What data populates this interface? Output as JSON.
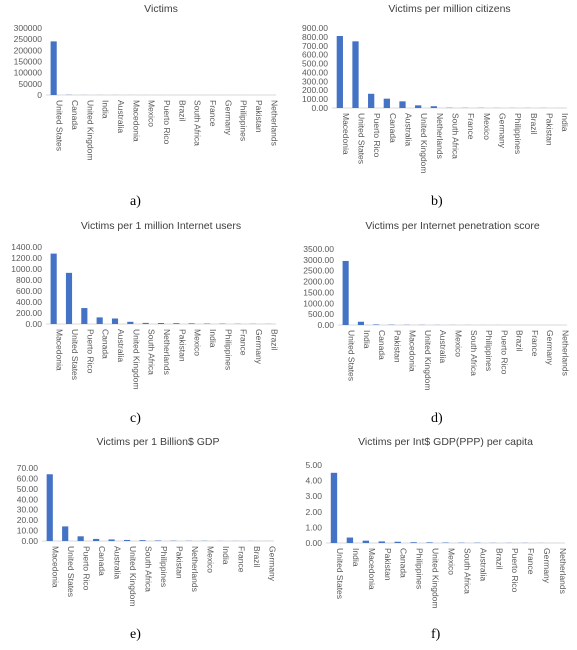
{
  "colors": {
    "bar": "#4472c4",
    "axis": "#d9d9d9",
    "text": "#595959"
  },
  "captions": [
    "a)",
    "b)",
    "c)",
    "d)",
    "e)",
    "f)"
  ],
  "chart_data": [
    {
      "type": "bar",
      "title": "Victims",
      "categories": [
        "United States",
        "Canada",
        "United Kingdom",
        "India",
        "Australia",
        "Macedonia",
        "Mexico",
        "Puerto Rico",
        "Brazil",
        "South Africa",
        "France",
        "Germany",
        "Philippines",
        "Pakistan",
        "Netherlands"
      ],
      "values": [
        240000,
        900,
        350,
        300,
        250,
        200,
        150,
        120,
        100,
        80,
        60,
        50,
        40,
        30,
        20
      ],
      "ylim": [
        0,
        300000
      ],
      "yticks": [
        "0",
        "50000",
        "100000",
        "150000",
        "200000",
        "250000",
        "300000"
      ]
    },
    {
      "type": "bar",
      "title": "Victims per million citizens",
      "categories": [
        "Macedonia",
        "United States",
        "Puerto Rico",
        "Canada",
        "Australia",
        "United Kingdom",
        "Netherlands",
        "South Africa",
        "France",
        "Mexico",
        "Germany",
        "Philippines",
        "Brazil",
        "Pakistan",
        "India"
      ],
      "values": [
        810,
        750,
        160,
        105,
        75,
        30,
        20,
        3,
        2,
        2,
        1,
        1,
        1,
        1,
        0.5
      ],
      "ylim": [
        0,
        900
      ],
      "yticks": [
        "0.00",
        "100.00",
        "200.00",
        "300.00",
        "400.00",
        "500.00",
        "600.00",
        "700.00",
        "800.00",
        "900.00"
      ]
    },
    {
      "type": "bar",
      "title": "Victims per 1 million Internet users",
      "categories": [
        "Macedonia",
        "United States",
        "Puerto Rico",
        "Canada",
        "Australia",
        "United Kingdom",
        "South Africa",
        "Netherlands",
        "Pakistan",
        "Mexico",
        "India",
        "Philippines",
        "France",
        "Germany",
        "Brazil"
      ],
      "values": [
        1280,
        930,
        290,
        120,
        100,
        40,
        20,
        18,
        15,
        12,
        8,
        6,
        4,
        3,
        2
      ],
      "ylim": [
        0,
        1400
      ],
      "yticks": [
        "0.00",
        "200.00",
        "400.00",
        "600.00",
        "800.00",
        "1000.00",
        "1200.00",
        "1400.00"
      ]
    },
    {
      "type": "bar",
      "title": "Victims per Internet penetration score",
      "categories": [
        "United States",
        "India",
        "Canada",
        "Pakistan",
        "Macedonia",
        "United Kingdom",
        "Australia",
        "Mexico",
        "South Africa",
        "Philippines",
        "Puerto Rico",
        "Brazil",
        "France",
        "Germany",
        "Netherlands"
      ],
      "values": [
        2950,
        150,
        25,
        15,
        10,
        8,
        5,
        4,
        3,
        2,
        2,
        1,
        1,
        1,
        0.5
      ],
      "ylim": [
        0,
        3500
      ],
      "yticks": [
        "0.00",
        "500.00",
        "1000.00",
        "1500.00",
        "2000.00",
        "2500.00",
        "3000.00",
        "3500.00"
      ]
    },
    {
      "type": "bar",
      "title": "Victims per 1 Billion$ GDP",
      "categories": [
        "Macedonia",
        "United States",
        "Puerto Rico",
        "Canada",
        "Australia",
        "United Kingdom",
        "South Africa",
        "Philippines",
        "Pakistan",
        "Netherlands",
        "Mexico",
        "India",
        "France",
        "Brazil",
        "Germany"
      ],
      "values": [
        64,
        14,
        4.5,
        2,
        1.5,
        1,
        0.8,
        0.5,
        0.3,
        0.2,
        0.2,
        0.1,
        0.1,
        0.1,
        0.05
      ],
      "ylim": [
        0,
        70
      ],
      "yticks": [
        "0.00",
        "10.00",
        "20.00",
        "30.00",
        "40.00",
        "50.00",
        "60.00",
        "70.00"
      ]
    },
    {
      "type": "bar",
      "title": "Victims per Int$ GDP(PPP) per capita",
      "categories": [
        "United States",
        "India",
        "Macedonia",
        "Pakistan",
        "Canada",
        "Philippines",
        "United Kingdom",
        "Mexico",
        "South Africa",
        "Australia",
        "Brazil",
        "Puerto Rico",
        "France",
        "Germany",
        "Netherlands"
      ],
      "values": [
        4.5,
        0.35,
        0.15,
        0.1,
        0.08,
        0.05,
        0.04,
        0.03,
        0.02,
        0.02,
        0.01,
        0.01,
        0.01,
        0.005,
        0.002
      ],
      "ylim": [
        0,
        5
      ],
      "yticks": [
        "0.00",
        "1.00",
        "2.00",
        "3.00",
        "4.00",
        "5.00"
      ]
    }
  ]
}
